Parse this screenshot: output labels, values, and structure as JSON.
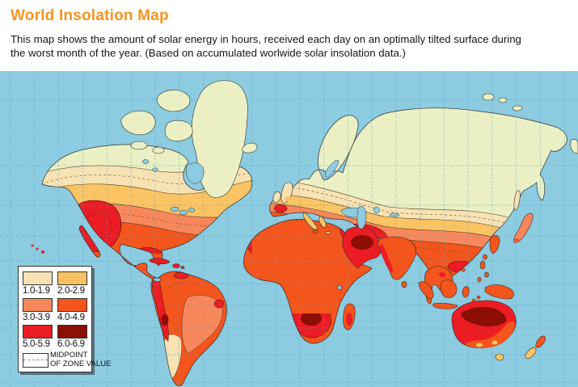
{
  "header": {
    "title": "World Insolation Map",
    "description_line1": "This map shows the amount of solar energy in hours, received each day on an optimally tilted surface during",
    "description_line2": "the worst month of the year. (Based on accumulated worlwide solar insolation data.)"
  },
  "map": {
    "legend": {
      "entries": [
        {
          "range": "1.0-1.9",
          "color": "#F7E2B3"
        },
        {
          "range": "2.0-2.9",
          "color": "#FAC464"
        },
        {
          "range": "3.0-3.9",
          "color": "#F8875C"
        },
        {
          "range": "4.0-4.9",
          "color": "#F4551C"
        },
        {
          "range": "5.0-5.9",
          "color": "#EC1C24"
        },
        {
          "range": "6.0-6.9",
          "color": "#8C0E04"
        }
      ],
      "midpoint_label_line1": "MIDPOINT",
      "midpoint_label_line2": "OF ZONE VALUE"
    },
    "colors": {
      "ocean": "#8CCBE0",
      "graticule": "#4FA0C4",
      "land_base": "#EAF0C3",
      "title_accent": "#F7941E"
    }
  }
}
